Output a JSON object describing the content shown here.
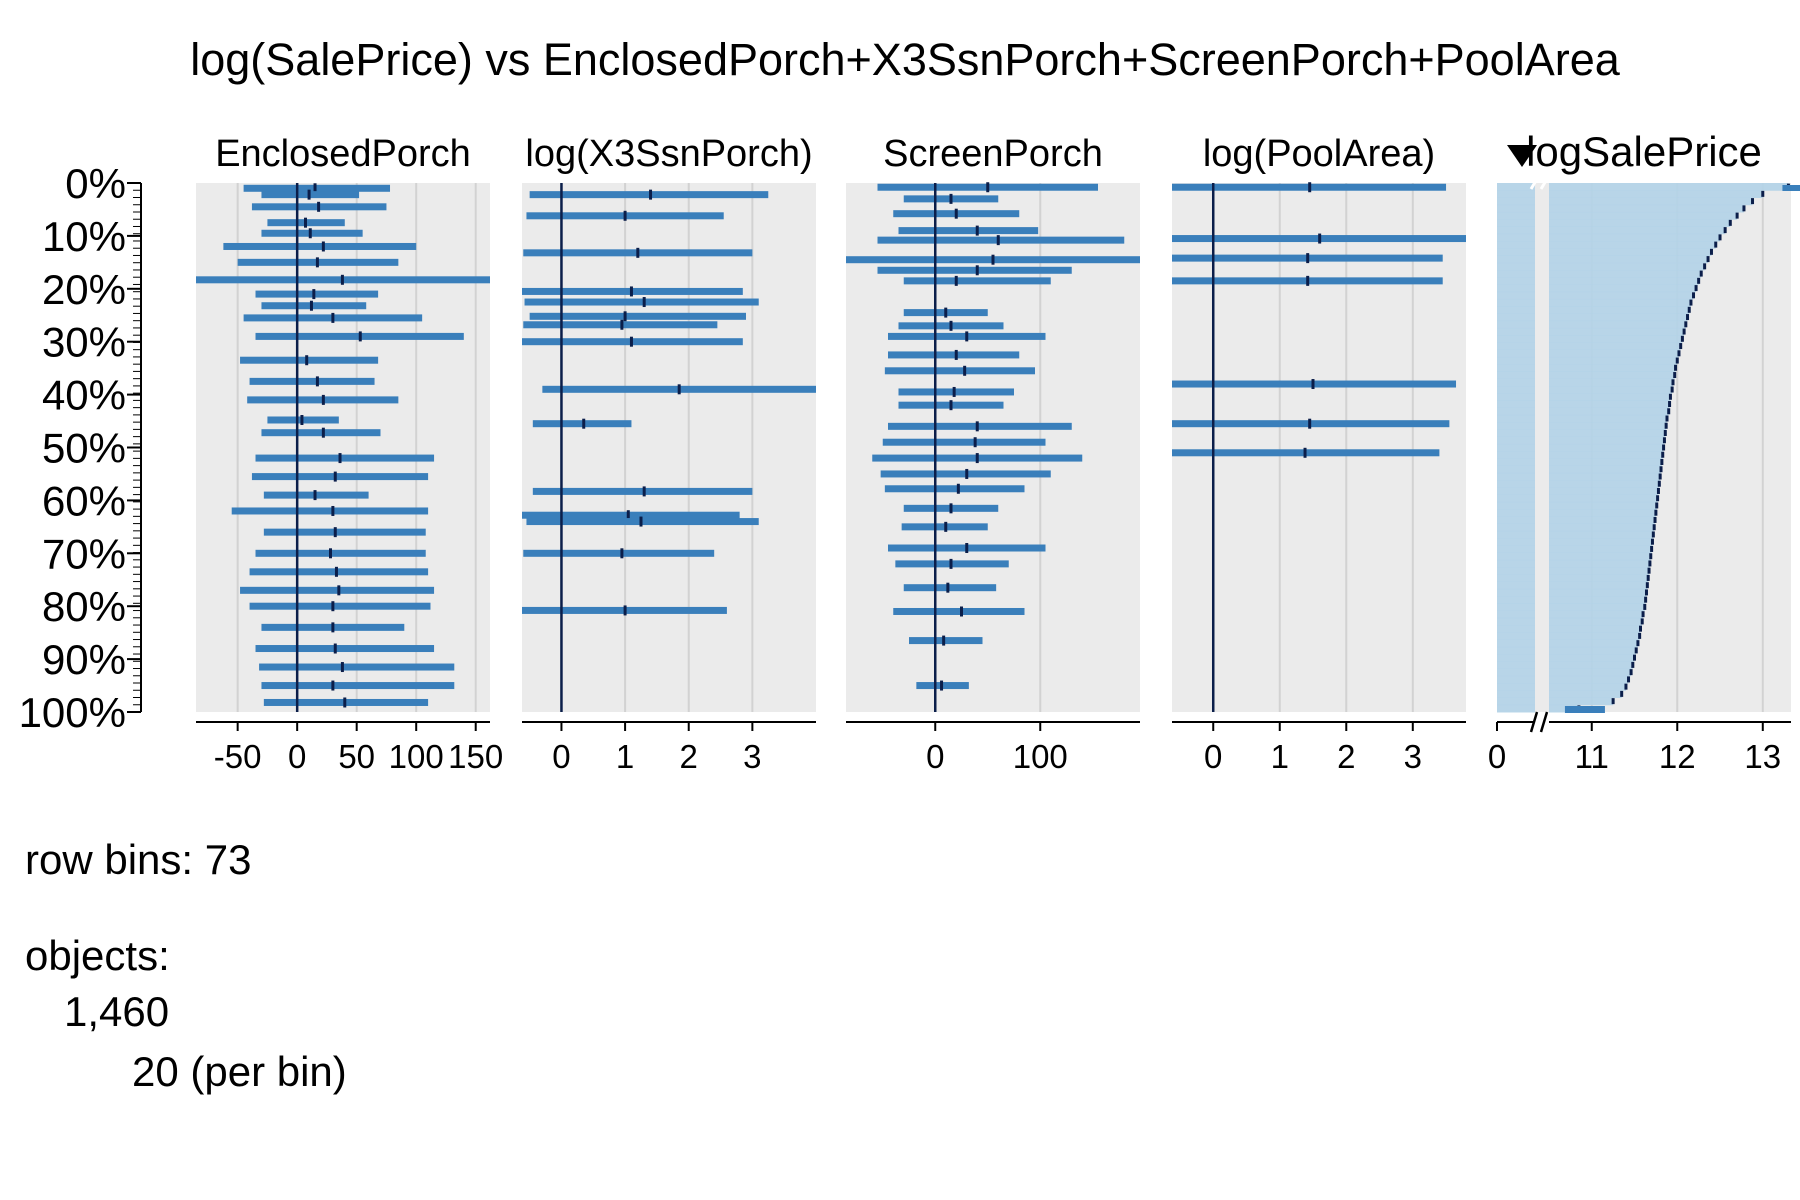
{
  "chart_data": {
    "type": "tableplot",
    "title": "log(SalePrice) vs EnclosedPorch+X3SsnPorch+ScreenPorch+PoolArea",
    "row_axis": {
      "labels": [
        "0%",
        "10%",
        "20%",
        "30%",
        "40%",
        "50%",
        "60%",
        "70%",
        "80%",
        "90%",
        "100%"
      ],
      "bins": 73
    },
    "colors": {
      "bar": "#3a7fbb",
      "mean": "#0b1e4a",
      "panel": "#ebebeb",
      "fill": "#b3d3e8",
      "grid": "#d2d2d2"
    },
    "panels": [
      {
        "name": "EnclosedPorch",
        "xlim": [
          -85,
          162
        ],
        "ticks": [
          -50,
          0,
          50,
          100,
          150
        ],
        "tick_labels": [
          "-50",
          "0",
          "50",
          "100",
          "150"
        ],
        "zero": 0,
        "bars": [
          {
            "row": 0.01,
            "lo": -45,
            "hi": 78,
            "mean": 15
          },
          {
            "row": 0.022,
            "lo": -30,
            "hi": 52,
            "mean": 10
          },
          {
            "row": 0.045,
            "lo": -38,
            "hi": 75,
            "mean": 18
          },
          {
            "row": 0.075,
            "lo": -25,
            "hi": 40,
            "mean": 7
          },
          {
            "row": 0.095,
            "lo": -30,
            "hi": 55,
            "mean": 11
          },
          {
            "row": 0.12,
            "lo": -62,
            "hi": 100,
            "mean": 22
          },
          {
            "row": 0.15,
            "lo": -50,
            "hi": 85,
            "mean": 17
          },
          {
            "row": 0.183,
            "lo": -85,
            "hi": 162,
            "mean": 38
          },
          {
            "row": 0.21,
            "lo": -35,
            "hi": 68,
            "mean": 14
          },
          {
            "row": 0.232,
            "lo": -30,
            "hi": 58,
            "mean": 12
          },
          {
            "row": 0.255,
            "lo": -45,
            "hi": 105,
            "mean": 30
          },
          {
            "row": 0.29,
            "lo": -35,
            "hi": 140,
            "mean": 53
          },
          {
            "row": 0.335,
            "lo": -48,
            "hi": 68,
            "mean": 8
          },
          {
            "row": 0.375,
            "lo": -40,
            "hi": 65,
            "mean": 17
          },
          {
            "row": 0.41,
            "lo": -42,
            "hi": 85,
            "mean": 22
          },
          {
            "row": 0.448,
            "lo": -25,
            "hi": 35,
            "mean": 4
          },
          {
            "row": 0.472,
            "lo": -30,
            "hi": 70,
            "mean": 22
          },
          {
            "row": 0.52,
            "lo": -35,
            "hi": 115,
            "mean": 36
          },
          {
            "row": 0.555,
            "lo": -38,
            "hi": 110,
            "mean": 32
          },
          {
            "row": 0.59,
            "lo": -28,
            "hi": 60,
            "mean": 15
          },
          {
            "row": 0.62,
            "lo": -55,
            "hi": 110,
            "mean": 30
          },
          {
            "row": 0.66,
            "lo": -28,
            "hi": 108,
            "mean": 32
          },
          {
            "row": 0.7,
            "lo": -35,
            "hi": 108,
            "mean": 28
          },
          {
            "row": 0.735,
            "lo": -40,
            "hi": 110,
            "mean": 33
          },
          {
            "row": 0.77,
            "lo": -48,
            "hi": 115,
            "mean": 35
          },
          {
            "row": 0.8,
            "lo": -40,
            "hi": 112,
            "mean": 30
          },
          {
            "row": 0.84,
            "lo": -30,
            "hi": 90,
            "mean": 30
          },
          {
            "row": 0.88,
            "lo": -35,
            "hi": 115,
            "mean": 32
          },
          {
            "row": 0.915,
            "lo": -32,
            "hi": 132,
            "mean": 38
          },
          {
            "row": 0.95,
            "lo": -30,
            "hi": 132,
            "mean": 30
          },
          {
            "row": 0.982,
            "lo": -28,
            "hi": 110,
            "mean": 40
          }
        ]
      },
      {
        "name": "log(X3SsnPorch)",
        "xlim": [
          -0.62,
          4.0
        ],
        "ticks": [
          0,
          1,
          2,
          3
        ],
        "tick_labels": [
          "0",
          "1",
          "2",
          "3"
        ],
        "zero": 0,
        "bars": [
          {
            "row": 0.022,
            "lo": -0.5,
            "hi": 3.25,
            "mean": 1.4
          },
          {
            "row": 0.062,
            "lo": -0.55,
            "hi": 2.55,
            "mean": 1.0
          },
          {
            "row": 0.132,
            "lo": -0.6,
            "hi": 3.0,
            "mean": 1.2
          },
          {
            "row": 0.205,
            "lo": -0.62,
            "hi": 2.85,
            "mean": 1.1
          },
          {
            "row": 0.225,
            "lo": -0.58,
            "hi": 3.1,
            "mean": 1.3
          },
          {
            "row": 0.252,
            "lo": -0.5,
            "hi": 2.9,
            "mean": 1.0
          },
          {
            "row": 0.268,
            "lo": -0.6,
            "hi": 2.45,
            "mean": 0.95
          },
          {
            "row": 0.3,
            "lo": -0.62,
            "hi": 2.85,
            "mean": 1.1
          },
          {
            "row": 0.39,
            "lo": -0.3,
            "hi": 4.0,
            "mean": 1.85
          },
          {
            "row": 0.455,
            "lo": -0.45,
            "hi": 1.1,
            "mean": 0.35
          },
          {
            "row": 0.583,
            "lo": -0.45,
            "hi": 3.0,
            "mean": 1.3
          },
          {
            "row": 0.628,
            "lo": -0.62,
            "hi": 2.8,
            "mean": 1.05
          },
          {
            "row": 0.64,
            "lo": -0.55,
            "hi": 3.1,
            "mean": 1.25
          },
          {
            "row": 0.7,
            "lo": -0.6,
            "hi": 2.4,
            "mean": 0.95
          },
          {
            "row": 0.808,
            "lo": -0.62,
            "hi": 2.6,
            "mean": 1.0
          }
        ]
      },
      {
        "name": "ScreenPorch",
        "xlim": [
          -85,
          195
        ],
        "ticks": [
          0,
          100
        ],
        "tick_labels": [
          "0",
          "100"
        ],
        "zero": 0,
        "bars": [
          {
            "row": 0.008,
            "lo": -55,
            "hi": 155,
            "mean": 50
          },
          {
            "row": 0.03,
            "lo": -30,
            "hi": 60,
            "mean": 15
          },
          {
            "row": 0.058,
            "lo": -40,
            "hi": 80,
            "mean": 20
          },
          {
            "row": 0.09,
            "lo": -35,
            "hi": 98,
            "mean": 40
          },
          {
            "row": 0.108,
            "lo": -55,
            "hi": 180,
            "mean": 60
          },
          {
            "row": 0.145,
            "lo": -85,
            "hi": 195,
            "mean": 55
          },
          {
            "row": 0.165,
            "lo": -55,
            "hi": 130,
            "mean": 40
          },
          {
            "row": 0.185,
            "lo": -30,
            "hi": 110,
            "mean": 20
          },
          {
            "row": 0.245,
            "lo": -30,
            "hi": 50,
            "mean": 10
          },
          {
            "row": 0.27,
            "lo": -35,
            "hi": 65,
            "mean": 15
          },
          {
            "row": 0.29,
            "lo": -45,
            "hi": 105,
            "mean": 30
          },
          {
            "row": 0.325,
            "lo": -45,
            "hi": 80,
            "mean": 20
          },
          {
            "row": 0.355,
            "lo": -48,
            "hi": 95,
            "mean": 28
          },
          {
            "row": 0.395,
            "lo": -35,
            "hi": 75,
            "mean": 18
          },
          {
            "row": 0.42,
            "lo": -35,
            "hi": 65,
            "mean": 15
          },
          {
            "row": 0.46,
            "lo": -45,
            "hi": 130,
            "mean": 40
          },
          {
            "row": 0.49,
            "lo": -50,
            "hi": 105,
            "mean": 38
          },
          {
            "row": 0.52,
            "lo": -60,
            "hi": 140,
            "mean": 40
          },
          {
            "row": 0.55,
            "lo": -52,
            "hi": 110,
            "mean": 30
          },
          {
            "row": 0.578,
            "lo": -48,
            "hi": 85,
            "mean": 22
          },
          {
            "row": 0.615,
            "lo": -30,
            "hi": 60,
            "mean": 15
          },
          {
            "row": 0.65,
            "lo": -32,
            "hi": 50,
            "mean": 10
          },
          {
            "row": 0.69,
            "lo": -45,
            "hi": 105,
            "mean": 30
          },
          {
            "row": 0.72,
            "lo": -38,
            "hi": 70,
            "mean": 15
          },
          {
            "row": 0.765,
            "lo": -30,
            "hi": 58,
            "mean": 12
          },
          {
            "row": 0.81,
            "lo": -40,
            "hi": 85,
            "mean": 25
          },
          {
            "row": 0.865,
            "lo": -25,
            "hi": 45,
            "mean": 8
          },
          {
            "row": 0.95,
            "lo": -18,
            "hi": 32,
            "mean": 6
          }
        ]
      },
      {
        "name": "log(PoolArea)",
        "xlim": [
          -0.62,
          3.8
        ],
        "ticks": [
          0,
          1,
          2,
          3
        ],
        "tick_labels": [
          "0",
          "1",
          "2",
          "3"
        ],
        "zero": 0,
        "bars": [
          {
            "row": 0.008,
            "lo": -0.62,
            "hi": 3.5,
            "mean": 1.45
          },
          {
            "row": 0.105,
            "lo": -0.62,
            "hi": 3.8,
            "mean": 1.6
          },
          {
            "row": 0.142,
            "lo": -0.62,
            "hi": 3.45,
            "mean": 1.42
          },
          {
            "row": 0.185,
            "lo": -0.62,
            "hi": 3.45,
            "mean": 1.42
          },
          {
            "row": 0.38,
            "lo": -0.62,
            "hi": 3.65,
            "mean": 1.5
          },
          {
            "row": 0.455,
            "lo": -0.62,
            "hi": 3.55,
            "mean": 1.45
          },
          {
            "row": 0.51,
            "lo": -0.62,
            "hi": 3.4,
            "mean": 1.38
          }
        ]
      },
      {
        "name": "logSalePrice",
        "ticks": [
          0,
          11,
          12,
          13
        ],
        "tick_labels": [
          "0",
          "11",
          "12",
          "13"
        ],
        "broken_axis": true,
        "sorted_by": true,
        "sort_descending": true,
        "bin_means": [
          13.3,
          13.0,
          12.88,
          12.78,
          12.7,
          12.62,
          12.56,
          12.5,
          12.45,
          12.4,
          12.36,
          12.32,
          12.28,
          12.25,
          12.22,
          12.19,
          12.16,
          12.14,
          12.12,
          12.1,
          12.08,
          12.06,
          12.04,
          12.02,
          12.0,
          11.98,
          11.97,
          11.95,
          11.94,
          11.92,
          11.91,
          11.9,
          11.88,
          11.87,
          11.86,
          11.85,
          11.84,
          11.83,
          11.82,
          11.81,
          11.8,
          11.79,
          11.78,
          11.77,
          11.76,
          11.75,
          11.74,
          11.73,
          11.72,
          11.71,
          11.7,
          11.69,
          11.68,
          11.67,
          11.66,
          11.65,
          11.64,
          11.63,
          11.62,
          11.6,
          11.59,
          11.57,
          11.56,
          11.54,
          11.52,
          11.5,
          11.48,
          11.46,
          11.43,
          11.4,
          11.35,
          11.25,
          10.85
        ]
      }
    ]
  },
  "footer": {
    "row_bins": "row bins: 73",
    "objects": "objects:",
    "count": "1,460",
    "per_bin": "20 (per bin)"
  }
}
